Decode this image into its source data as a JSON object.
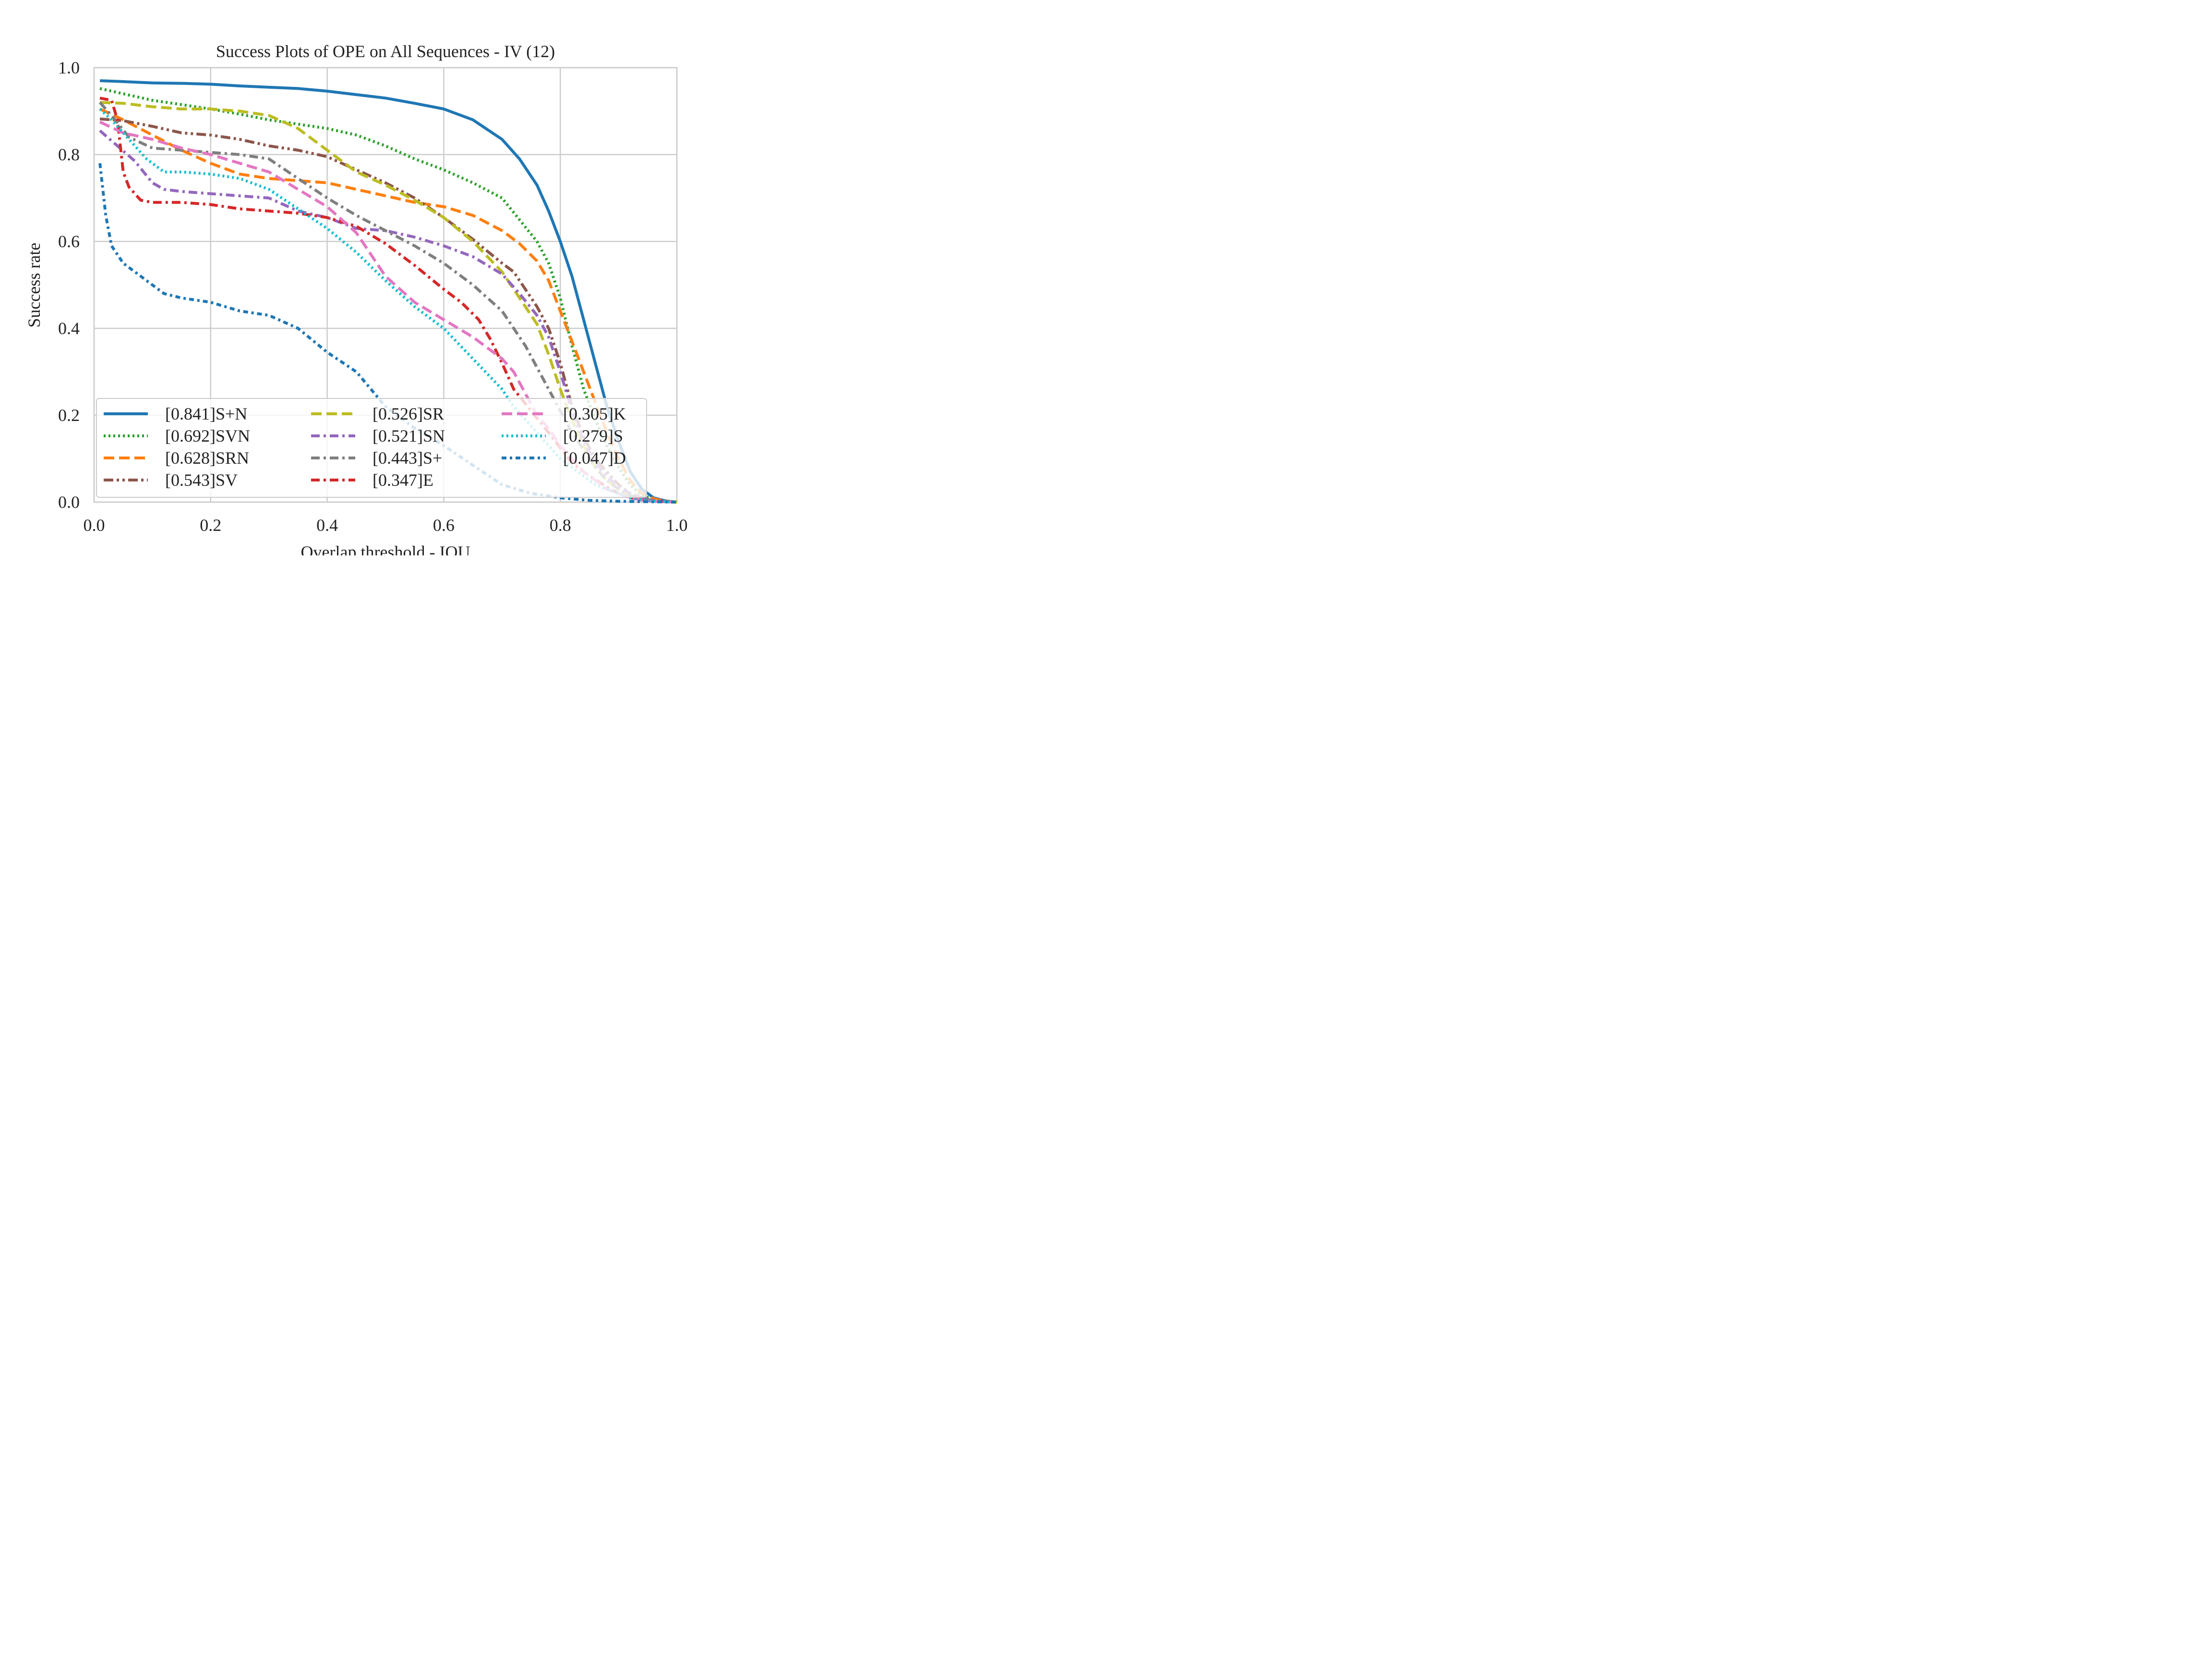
{
  "chart_data": {
    "type": "line",
    "title": "Success Plots of OPE on All Sequences - IV (12)",
    "xlabel": "Overlap threshold - IOU",
    "ylabel": "Success rate",
    "xlim": [
      0.0,
      1.0
    ],
    "ylim": [
      0.0,
      1.0
    ],
    "grid": true,
    "legend_position": "lower-left, 3 columns",
    "x_ticks": [
      "0.0",
      "0.2",
      "0.4",
      "0.6",
      "0.8",
      "1.0"
    ],
    "y_ticks": [
      "0.0",
      "0.2",
      "0.4",
      "0.6",
      "0.8",
      "1.0"
    ],
    "series": [
      {
        "name": "[0.841]S+N",
        "color": "#1f77b4",
        "style": "solid",
        "x": [
          0.01,
          0.05,
          0.1,
          0.15,
          0.2,
          0.25,
          0.3,
          0.35,
          0.4,
          0.45,
          0.5,
          0.55,
          0.6,
          0.65,
          0.7,
          0.73,
          0.76,
          0.78,
          0.8,
          0.82,
          0.84,
          0.86,
          0.88,
          0.9,
          0.92,
          0.94,
          0.96,
          0.98,
          1.0
        ],
        "y": [
          0.97,
          0.968,
          0.965,
          0.964,
          0.962,
          0.958,
          0.955,
          0.952,
          0.946,
          0.938,
          0.93,
          0.918,
          0.905,
          0.88,
          0.835,
          0.79,
          0.73,
          0.67,
          0.6,
          0.52,
          0.42,
          0.32,
          0.22,
          0.14,
          0.07,
          0.03,
          0.01,
          0.003,
          0.0
        ]
      },
      {
        "name": "[0.692]SVN",
        "color": "#2ca02c",
        "style": "dotted",
        "x": [
          0.01,
          0.05,
          0.1,
          0.15,
          0.2,
          0.25,
          0.3,
          0.35,
          0.4,
          0.45,
          0.5,
          0.55,
          0.6,
          0.65,
          0.7,
          0.73,
          0.76,
          0.78,
          0.8,
          0.82,
          0.84,
          0.86,
          0.88,
          0.9,
          0.92,
          0.94,
          0.96,
          0.98,
          1.0
        ],
        "y": [
          0.952,
          0.94,
          0.925,
          0.915,
          0.905,
          0.893,
          0.88,
          0.87,
          0.86,
          0.845,
          0.82,
          0.79,
          0.765,
          0.735,
          0.7,
          0.65,
          0.6,
          0.55,
          0.47,
          0.36,
          0.26,
          0.19,
          0.13,
          0.08,
          0.04,
          0.015,
          0.006,
          0.002,
          0.0
        ]
      },
      {
        "name": "[0.628]SRN",
        "color": "#ff7f0e",
        "style": "dashed",
        "x": [
          0.01,
          0.05,
          0.1,
          0.15,
          0.2,
          0.25,
          0.3,
          0.35,
          0.4,
          0.45,
          0.5,
          0.55,
          0.6,
          0.65,
          0.7,
          0.73,
          0.76,
          0.78,
          0.8,
          0.82,
          0.84,
          0.86,
          0.88,
          0.9,
          0.92,
          0.94,
          0.96,
          0.98,
          1.0
        ],
        "y": [
          0.905,
          0.88,
          0.845,
          0.81,
          0.78,
          0.755,
          0.745,
          0.74,
          0.735,
          0.72,
          0.705,
          0.69,
          0.68,
          0.66,
          0.625,
          0.595,
          0.555,
          0.51,
          0.44,
          0.37,
          0.3,
          0.23,
          0.16,
          0.1,
          0.05,
          0.02,
          0.008,
          0.002,
          0.0
        ]
      },
      {
        "name": "[0.543]SV",
        "color": "#8c564b",
        "style": "dashdotdot",
        "x": [
          0.01,
          0.05,
          0.1,
          0.15,
          0.2,
          0.25,
          0.3,
          0.35,
          0.4,
          0.45,
          0.5,
          0.55,
          0.6,
          0.65,
          0.7,
          0.72,
          0.74,
          0.76,
          0.78,
          0.8,
          0.82,
          0.84,
          0.86,
          0.88,
          0.9,
          0.92,
          0.94,
          0.96,
          0.98,
          1.0
        ],
        "y": [
          0.882,
          0.878,
          0.865,
          0.85,
          0.845,
          0.835,
          0.82,
          0.81,
          0.795,
          0.765,
          0.735,
          0.7,
          0.655,
          0.605,
          0.55,
          0.53,
          0.49,
          0.45,
          0.4,
          0.32,
          0.22,
          0.15,
          0.1,
          0.07,
          0.04,
          0.02,
          0.01,
          0.004,
          0.001,
          0.0
        ]
      },
      {
        "name": "[0.526]SR",
        "color": "#bcbd22",
        "style": "dashed",
        "x": [
          0.01,
          0.05,
          0.1,
          0.15,
          0.2,
          0.25,
          0.3,
          0.35,
          0.4,
          0.45,
          0.5,
          0.55,
          0.6,
          0.65,
          0.7,
          0.72,
          0.74,
          0.76,
          0.78,
          0.8,
          0.82,
          0.84,
          0.86,
          0.88,
          0.9,
          0.92,
          0.94,
          0.96,
          0.98,
          1.0
        ],
        "y": [
          0.92,
          0.918,
          0.91,
          0.905,
          0.905,
          0.9,
          0.89,
          0.86,
          0.81,
          0.76,
          0.73,
          0.695,
          0.655,
          0.6,
          0.53,
          0.49,
          0.45,
          0.41,
          0.34,
          0.26,
          0.19,
          0.13,
          0.08,
          0.05,
          0.03,
          0.015,
          0.008,
          0.003,
          0.001,
          0.0
        ]
      },
      {
        "name": "[0.521]SN",
        "color": "#9467bd",
        "style": "dashdot",
        "x": [
          0.01,
          0.04,
          0.07,
          0.1,
          0.12,
          0.15,
          0.2,
          0.25,
          0.3,
          0.35,
          0.4,
          0.45,
          0.5,
          0.55,
          0.6,
          0.65,
          0.7,
          0.73,
          0.76,
          0.78,
          0.8,
          0.82,
          0.84,
          0.86,
          0.88,
          0.9,
          0.92,
          0.94,
          0.96,
          0.98,
          1.0
        ],
        "y": [
          0.855,
          0.82,
          0.785,
          0.735,
          0.72,
          0.715,
          0.71,
          0.705,
          0.7,
          0.67,
          0.655,
          0.63,
          0.625,
          0.61,
          0.59,
          0.565,
          0.525,
          0.48,
          0.43,
          0.38,
          0.3,
          0.21,
          0.14,
          0.09,
          0.06,
          0.035,
          0.02,
          0.01,
          0.004,
          0.001,
          0.0
        ]
      },
      {
        "name": "[0.443]S+",
        "color": "#7f7f7f",
        "style": "dashdot",
        "x": [
          0.01,
          0.03,
          0.06,
          0.1,
          0.15,
          0.2,
          0.25,
          0.3,
          0.35,
          0.4,
          0.45,
          0.5,
          0.55,
          0.6,
          0.65,
          0.7,
          0.74,
          0.78,
          0.8,
          0.82,
          0.84,
          0.86,
          0.88,
          0.9,
          0.92,
          0.94,
          0.96,
          0.98,
          1.0
        ],
        "y": [
          0.92,
          0.89,
          0.84,
          0.815,
          0.81,
          0.805,
          0.8,
          0.79,
          0.745,
          0.7,
          0.66,
          0.625,
          0.59,
          0.55,
          0.5,
          0.44,
          0.36,
          0.26,
          0.21,
          0.16,
          0.12,
          0.08,
          0.05,
          0.03,
          0.015,
          0.008,
          0.004,
          0.001,
          0.0
        ]
      },
      {
        "name": "[0.347]E",
        "color": "#d62728",
        "style": "dashdot",
        "x": [
          0.01,
          0.03,
          0.04,
          0.05,
          0.06,
          0.08,
          0.1,
          0.15,
          0.2,
          0.25,
          0.3,
          0.35,
          0.4,
          0.45,
          0.5,
          0.55,
          0.6,
          0.63,
          0.66,
          0.68,
          0.7,
          0.72,
          0.75,
          0.78,
          0.8,
          0.82,
          0.85,
          0.88,
          0.9,
          0.92,
          0.94,
          0.96,
          0.98,
          1.0
        ],
        "y": [
          0.93,
          0.925,
          0.88,
          0.76,
          0.725,
          0.695,
          0.69,
          0.69,
          0.685,
          0.675,
          0.67,
          0.665,
          0.655,
          0.635,
          0.595,
          0.545,
          0.49,
          0.46,
          0.42,
          0.375,
          0.32,
          0.26,
          0.21,
          0.16,
          0.125,
          0.09,
          0.06,
          0.035,
          0.02,
          0.01,
          0.005,
          0.002,
          0.001,
          0.0
        ]
      },
      {
        "name": "[0.305]K",
        "color": "#e377c2",
        "style": "dashed",
        "x": [
          0.01,
          0.05,
          0.1,
          0.15,
          0.2,
          0.25,
          0.3,
          0.35,
          0.4,
          0.45,
          0.5,
          0.55,
          0.6,
          0.65,
          0.7,
          0.72,
          0.74,
          0.76,
          0.78,
          0.8,
          0.82,
          0.84,
          0.86,
          0.88,
          0.9,
          0.92,
          0.94,
          0.96,
          0.98,
          1.0
        ],
        "y": [
          0.875,
          0.85,
          0.835,
          0.815,
          0.8,
          0.78,
          0.76,
          0.72,
          0.68,
          0.62,
          0.52,
          0.46,
          0.42,
          0.38,
          0.33,
          0.3,
          0.25,
          0.2,
          0.17,
          0.13,
          0.1,
          0.07,
          0.05,
          0.03,
          0.02,
          0.01,
          0.005,
          0.002,
          0.001,
          0.0
        ]
      },
      {
        "name": "[0.279]S",
        "color": "#17becf",
        "style": "dotted",
        "x": [
          0.01,
          0.03,
          0.06,
          0.09,
          0.12,
          0.15,
          0.2,
          0.25,
          0.3,
          0.35,
          0.4,
          0.45,
          0.5,
          0.55,
          0.6,
          0.65,
          0.7,
          0.72,
          0.74,
          0.76,
          0.78,
          0.8,
          0.82,
          0.84,
          0.86,
          0.88,
          0.9,
          0.92,
          0.94,
          0.96,
          0.98,
          1.0
        ],
        "y": [
          0.905,
          0.88,
          0.835,
          0.79,
          0.76,
          0.76,
          0.755,
          0.745,
          0.72,
          0.675,
          0.63,
          0.575,
          0.51,
          0.45,
          0.4,
          0.33,
          0.26,
          0.22,
          0.19,
          0.16,
          0.13,
          0.1,
          0.08,
          0.06,
          0.04,
          0.03,
          0.02,
          0.01,
          0.005,
          0.002,
          0.001,
          0.0
        ]
      },
      {
        "name": "[0.047]D",
        "color": "#1f77b4",
        "style": "dashdotfine",
        "x": [
          0.01,
          0.02,
          0.03,
          0.05,
          0.08,
          0.1,
          0.12,
          0.15,
          0.2,
          0.25,
          0.3,
          0.35,
          0.4,
          0.45,
          0.5,
          0.55,
          0.6,
          0.65,
          0.7,
          0.75,
          0.8,
          0.85,
          0.9,
          0.95,
          1.0
        ],
        "y": [
          0.78,
          0.66,
          0.59,
          0.55,
          0.52,
          0.5,
          0.48,
          0.47,
          0.46,
          0.44,
          0.43,
          0.4,
          0.345,
          0.3,
          0.22,
          0.17,
          0.13,
          0.085,
          0.04,
          0.02,
          0.01,
          0.004,
          0.002,
          0.001,
          0.0
        ]
      }
    ]
  }
}
